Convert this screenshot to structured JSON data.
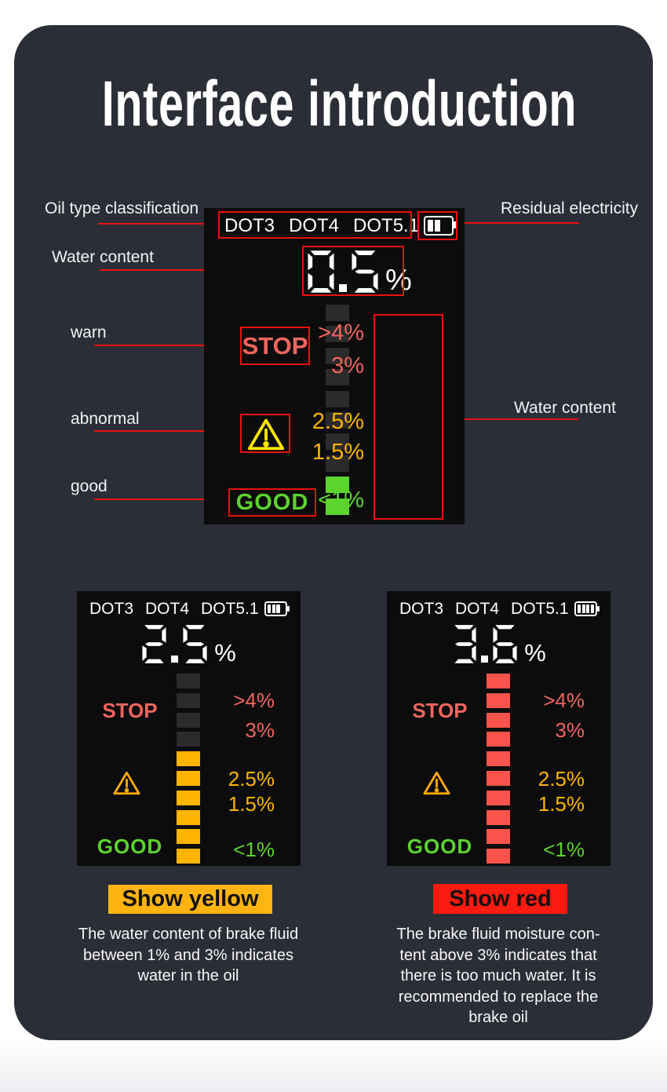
{
  "title": "Interface introduction",
  "colors": {
    "card": "#2b2e37",
    "screen": "#0c0c0c",
    "annotation": "#e8120e",
    "salmon": "#f0665e",
    "yellow": "#ffb400",
    "green": "#5cd42e",
    "redbar": "#f8544c",
    "off": "#2b2b2b",
    "triangle_main": "#ffe600",
    "triangle_mini": "#ffaa00",
    "badge_yellow": "#ffb411",
    "badge_red": "#fc1b10"
  },
  "annotations": {
    "oil_type": "Oil type classification",
    "water_content_top": "Water content",
    "residual_electricity": "Residual electricity",
    "warn": "warn",
    "abnormal": "abnormal",
    "good": "good",
    "water_content_right": "Water content"
  },
  "screens": {
    "main": {
      "dots": [
        "DOT3",
        "DOT4",
        "DOT5.1"
      ],
      "battery_bars": 2,
      "value": "0.5",
      "unit": "%",
      "stop": "STOP",
      "good": "GOOD",
      "scale": [
        {
          "label": ">4%",
          "color": "salmon"
        },
        {
          "label": "3%",
          "color": "salmon"
        },
        {
          "label": "2.5%",
          "color": "yellow"
        },
        {
          "label": "1.5%",
          "color": "yellow"
        },
        {
          "label": "<1%",
          "color": "green"
        }
      ],
      "bars": [
        "off",
        "off",
        "off",
        "off",
        "off",
        "off",
        "off",
        "off",
        "green",
        "green"
      ]
    },
    "yellow": {
      "dots": [
        "DOT3",
        "DOT4",
        "DOT5.1"
      ],
      "battery_bars": 3,
      "value": "2.5",
      "unit": "%",
      "stop": "STOP",
      "good": "GOOD",
      "scale": [
        {
          "label": ">4%",
          "color": "salmon"
        },
        {
          "label": "3%",
          "color": "salmon"
        },
        {
          "label": "2.5%",
          "color": "yellow"
        },
        {
          "label": "1.5%",
          "color": "yellow"
        },
        {
          "label": "<1%",
          "color": "green"
        }
      ],
      "bars": [
        "off",
        "off",
        "off",
        "off",
        "yellow",
        "yellow",
        "yellow",
        "yellow",
        "yellow",
        "yellow"
      ]
    },
    "red": {
      "dots": [
        "DOT3",
        "DOT4",
        "DOT5.1"
      ],
      "battery_bars": 4,
      "value": "3.6",
      "unit": "%",
      "stop": "STOP",
      "good": "GOOD",
      "scale": [
        {
          "label": ">4%",
          "color": "salmon"
        },
        {
          "label": "3%",
          "color": "salmon"
        },
        {
          "label": "2.5%",
          "color": "yellow"
        },
        {
          "label": "1.5%",
          "color": "yellow"
        },
        {
          "label": "<1%",
          "color": "green"
        }
      ],
      "bars": [
        "red",
        "red",
        "red",
        "red",
        "red",
        "red",
        "red",
        "red",
        "red",
        "red"
      ]
    }
  },
  "captions": {
    "yellow": {
      "badge": "Show yellow",
      "lines": [
        "The water content of brake fluid",
        "between 1% and 3% indicates",
        "water in the oil"
      ]
    },
    "red": {
      "badge": "Show red",
      "lines": [
        "The brake fluid moisture con-",
        "tent above 3% indicates that",
        "there is too much water. It is",
        "recommended to replace the",
        "brake oil"
      ]
    }
  }
}
